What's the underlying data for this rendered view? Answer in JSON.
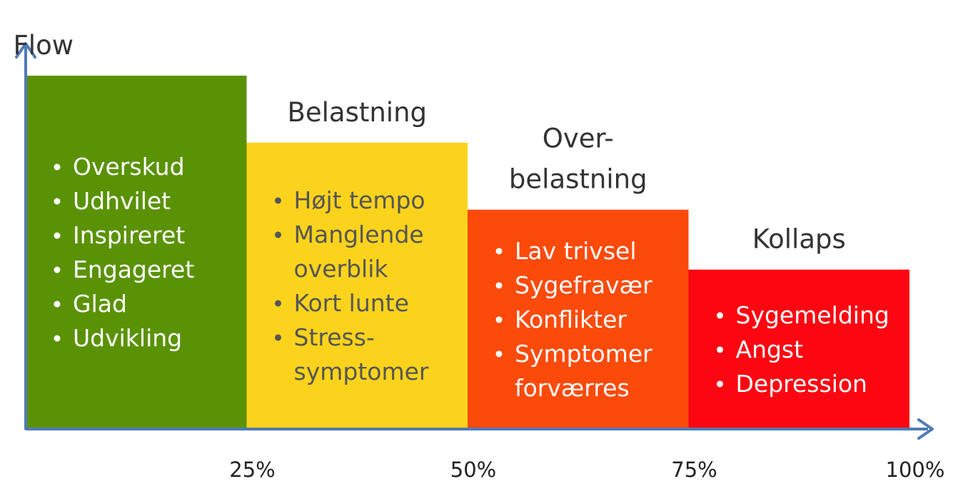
{
  "chart_data": {
    "type": "bar",
    "categories": [
      "Flow",
      "Belastning",
      "Over-belastning",
      "Kollaps"
    ],
    "values": [
      100,
      81,
      62,
      45
    ],
    "x_ticks": [
      "25%",
      "50%",
      "75%",
      "100%"
    ],
    "ylim": [
      0,
      100
    ],
    "grid": false,
    "xlabel": "",
    "ylabel": "",
    "axis_color": "#4f7ab6",
    "stages": [
      {
        "title_lines": [
          "Flow"
        ],
        "color": "#5a9205",
        "text_color": "#ffffff",
        "items": [
          [
            "Overskud"
          ],
          [
            "Udhvilet"
          ],
          [
            "Inspireret"
          ],
          [
            "Engageret"
          ],
          [
            "Glad"
          ],
          [
            "Udvikling"
          ]
        ]
      },
      {
        "title_lines": [
          "Belastning"
        ],
        "color": "#fcd31c",
        "text_color": "#555555",
        "items": [
          [
            "Højt tempo"
          ],
          [
            "Manglende",
            "overblik"
          ],
          [
            "Kort lunte"
          ],
          [
            "Stress-",
            "symptomer"
          ]
        ]
      },
      {
        "title_lines": [
          "Over-",
          "belastning"
        ],
        "color": "#fc4a0b",
        "text_color": "#ffffff",
        "items": [
          [
            "Lav trivsel"
          ],
          [
            "Sygefravær"
          ],
          [
            "Konflikter"
          ],
          [
            "Symptomer",
            "forværres"
          ]
        ]
      },
      {
        "title_lines": [
          "Kollaps"
        ],
        "color": "#fc0711",
        "text_color": "#ffffff",
        "items": [
          [
            "Sygemelding"
          ],
          [
            "Angst"
          ],
          [
            "Depression"
          ]
        ]
      }
    ]
  }
}
